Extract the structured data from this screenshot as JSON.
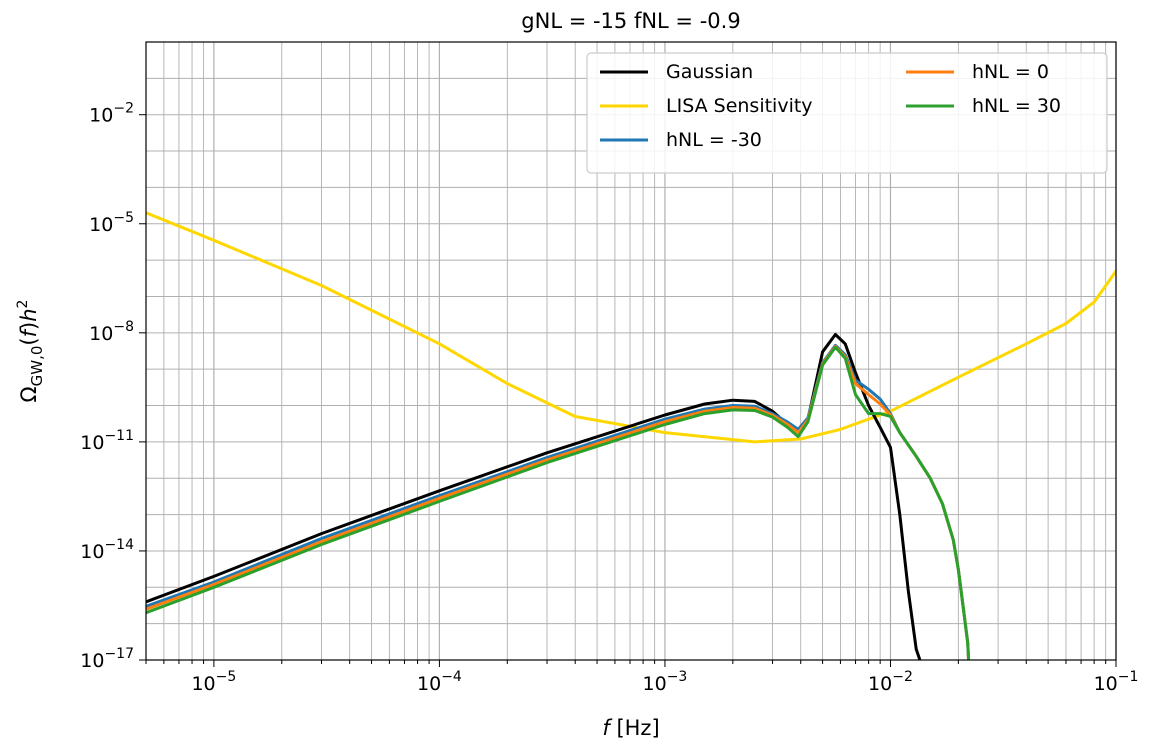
{
  "chart_data": {
    "type": "line",
    "title": "gNL = -15 fNL = -0.9",
    "xlabel": {
      "italic": "f",
      "text": " [Hz]"
    },
    "ylabel": {
      "omega": "Ω",
      "sub": "GW,0",
      "paren": "(",
      "f": "f",
      "paren2": ")",
      "h": "h",
      "sup": "2"
    },
    "x_scale": "log",
    "y_scale": "log",
    "xlim": [
      5e-06,
      0.1
    ],
    "ylim": [
      1e-17,
      1.0
    ],
    "x_ticks": [
      {
        "value": 1e-05,
        "base": "10",
        "exp": "−5"
      },
      {
        "value": 0.0001,
        "base": "10",
        "exp": "−4"
      },
      {
        "value": 0.001,
        "base": "10",
        "exp": "−3"
      },
      {
        "value": 0.01,
        "base": "10",
        "exp": "−2"
      },
      {
        "value": 0.1,
        "base": "10",
        "exp": "−1"
      }
    ],
    "y_ticks": [
      {
        "value": 1e-17,
        "base": "10",
        "exp": "−17"
      },
      {
        "value": 1e-14,
        "base": "10",
        "exp": "−14"
      },
      {
        "value": 1e-11,
        "base": "10",
        "exp": "−11"
      },
      {
        "value": 1e-08,
        "base": "10",
        "exp": "−8"
      },
      {
        "value": 1e-05,
        "base": "10",
        "exp": "−5"
      },
      {
        "value": 0.01,
        "base": "10",
        "exp": "−2"
      }
    ],
    "grid": true,
    "legend": {
      "placement": "top-right",
      "columns": 2
    },
    "series": [
      {
        "name": "Gaussian",
        "color": "#000000",
        "points": [
          [
            5e-06,
            4e-16
          ],
          [
            1e-05,
            2e-15
          ],
          [
            3e-05,
            3e-14
          ],
          [
            0.0001,
            4.5e-13
          ],
          [
            0.0003,
            5e-12
          ],
          [
            0.001,
            5.5e-11
          ],
          [
            0.0015,
            1.1e-10
          ],
          [
            0.002,
            1.4e-10
          ],
          [
            0.0025,
            1.3e-10
          ],
          [
            0.003,
            7e-11
          ],
          [
            0.0035,
            3e-11
          ],
          [
            0.0039,
            2e-11
          ],
          [
            0.0043,
            4e-11
          ],
          [
            0.005,
            3e-09
          ],
          [
            0.0057,
            9e-09
          ],
          [
            0.0063,
            5e-09
          ],
          [
            0.007,
            8e-10
          ],
          [
            0.008,
            1e-10
          ],
          [
            0.009,
            2.5e-11
          ],
          [
            0.01,
            7e-12
          ],
          [
            0.011,
            1e-13
          ],
          [
            0.012,
            8e-16
          ],
          [
            0.013,
            2e-17
          ],
          [
            0.0135,
            1e-17
          ]
        ]
      },
      {
        "name": "LISA Sensitivity",
        "color": "#FFD700",
        "points": [
          [
            5e-06,
            2e-05
          ],
          [
            1e-05,
            3.5e-06
          ],
          [
            3e-05,
            2e-07
          ],
          [
            0.0001,
            5e-09
          ],
          [
            0.0002,
            4e-10
          ],
          [
            0.0004,
            5e-11
          ],
          [
            0.001,
            1.8e-11
          ],
          [
            0.0025,
            1e-11
          ],
          [
            0.004,
            1.2e-11
          ],
          [
            0.006,
            2.2e-11
          ],
          [
            0.01,
            7e-11
          ],
          [
            0.02,
            6e-10
          ],
          [
            0.04,
            5e-09
          ],
          [
            0.06,
            1.8e-08
          ],
          [
            0.08,
            7e-08
          ],
          [
            0.1,
            5e-07
          ]
        ]
      },
      {
        "name": "hNL = -30",
        "color": "#1f77b4",
        "points": [
          [
            5e-06,
            3e-16
          ],
          [
            1e-05,
            1.4e-15
          ],
          [
            3e-05,
            2.2e-14
          ],
          [
            0.0001,
            3.3e-13
          ],
          [
            0.0003,
            3.7e-12
          ],
          [
            0.001,
            4.2e-11
          ],
          [
            0.0015,
            8e-11
          ],
          [
            0.002,
            1e-10
          ],
          [
            0.0025,
            9.5e-11
          ],
          [
            0.003,
            6e-11
          ],
          [
            0.0035,
            3.5e-11
          ],
          [
            0.0039,
            2.2e-11
          ],
          [
            0.0043,
            4.5e-11
          ],
          [
            0.005,
            1.5e-09
          ],
          [
            0.0057,
            4.5e-09
          ],
          [
            0.0063,
            2.5e-09
          ],
          [
            0.007,
            5e-10
          ],
          [
            0.008,
            2.8e-10
          ],
          [
            0.009,
            1.5e-10
          ],
          [
            0.01,
            6e-11
          ],
          [
            0.011,
            1.8e-11
          ],
          [
            0.013,
            4e-12
          ],
          [
            0.015,
            1e-12
          ],
          [
            0.017,
            2e-13
          ],
          [
            0.019,
            2e-14
          ],
          [
            0.02,
            3e-15
          ],
          [
            0.021,
            3e-16
          ],
          [
            0.022,
            3e-17
          ],
          [
            0.0222,
            1e-17
          ]
        ]
      },
      {
        "name": "hNL = 0",
        "color": "#ff7f0e",
        "points": [
          [
            5e-06,
            2.5e-16
          ],
          [
            1e-05,
            1.2e-15
          ],
          [
            3e-05,
            1.8e-14
          ],
          [
            0.0001,
            2.8e-13
          ],
          [
            0.0003,
            3.2e-12
          ],
          [
            0.001,
            3.6e-11
          ],
          [
            0.0015,
            7e-11
          ],
          [
            0.002,
            8.8e-11
          ],
          [
            0.0025,
            8.4e-11
          ],
          [
            0.003,
            5.4e-11
          ],
          [
            0.0035,
            3e-11
          ],
          [
            0.0039,
            1.8e-11
          ],
          [
            0.0043,
            4e-11
          ],
          [
            0.005,
            1.4e-09
          ],
          [
            0.0057,
            4.2e-09
          ],
          [
            0.0063,
            2.2e-09
          ],
          [
            0.007,
            4e-10
          ],
          [
            0.008,
            2e-10
          ],
          [
            0.009,
            1.1e-10
          ],
          [
            0.01,
            5.5e-11
          ],
          [
            0.011,
            1.8e-11
          ],
          [
            0.013,
            4e-12
          ],
          [
            0.015,
            1e-12
          ],
          [
            0.017,
            2e-13
          ],
          [
            0.019,
            2e-14
          ],
          [
            0.02,
            3e-15
          ],
          [
            0.021,
            3e-16
          ],
          [
            0.022,
            3e-17
          ],
          [
            0.0222,
            1e-17
          ]
        ]
      },
      {
        "name": "hNL = 30",
        "color": "#2ca02c",
        "points": [
          [
            5e-06,
            2e-16
          ],
          [
            1e-05,
            1e-15
          ],
          [
            3e-05,
            1.5e-14
          ],
          [
            0.0001,
            2.3e-13
          ],
          [
            0.0003,
            2.7e-12
          ],
          [
            0.001,
            3e-11
          ],
          [
            0.0015,
            6e-11
          ],
          [
            0.002,
            7.6e-11
          ],
          [
            0.0025,
            7.3e-11
          ],
          [
            0.003,
            4.8e-11
          ],
          [
            0.0035,
            2.5e-11
          ],
          [
            0.0039,
            1.4e-11
          ],
          [
            0.0043,
            3.5e-11
          ],
          [
            0.005,
            1.3e-09
          ],
          [
            0.0057,
            4e-09
          ],
          [
            0.0063,
            2e-09
          ],
          [
            0.007,
            2e-10
          ],
          [
            0.008,
            6e-11
          ],
          [
            0.009,
            6e-11
          ],
          [
            0.01,
            5e-11
          ],
          [
            0.011,
            1.8e-11
          ],
          [
            0.013,
            4e-12
          ],
          [
            0.015,
            1e-12
          ],
          [
            0.017,
            2e-13
          ],
          [
            0.019,
            2e-14
          ],
          [
            0.02,
            3e-15
          ],
          [
            0.021,
            3e-16
          ],
          [
            0.022,
            3e-17
          ],
          [
            0.0222,
            1e-17
          ]
        ]
      }
    ]
  }
}
